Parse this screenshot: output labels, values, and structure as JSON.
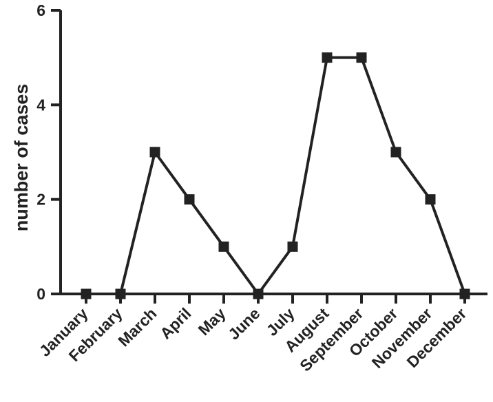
{
  "chart_data": {
    "type": "line",
    "title": "",
    "xlabel": "",
    "ylabel": "number of cases",
    "categories": [
      "January",
      "February",
      "March",
      "April",
      "May",
      "June",
      "July",
      "August",
      "September",
      "October",
      "November",
      "December"
    ],
    "series": [
      {
        "values": [
          0,
          0,
          3,
          2,
          1,
          0,
          1,
          5,
          5,
          3,
          2,
          0
        ]
      }
    ],
    "ylim": [
      0,
      6
    ],
    "yticks": [
      0,
      2,
      4,
      6
    ],
    "marker": "square",
    "grid": false,
    "legend": "none",
    "colors": {
      "line": "#222222",
      "axis": "#222222"
    }
  }
}
